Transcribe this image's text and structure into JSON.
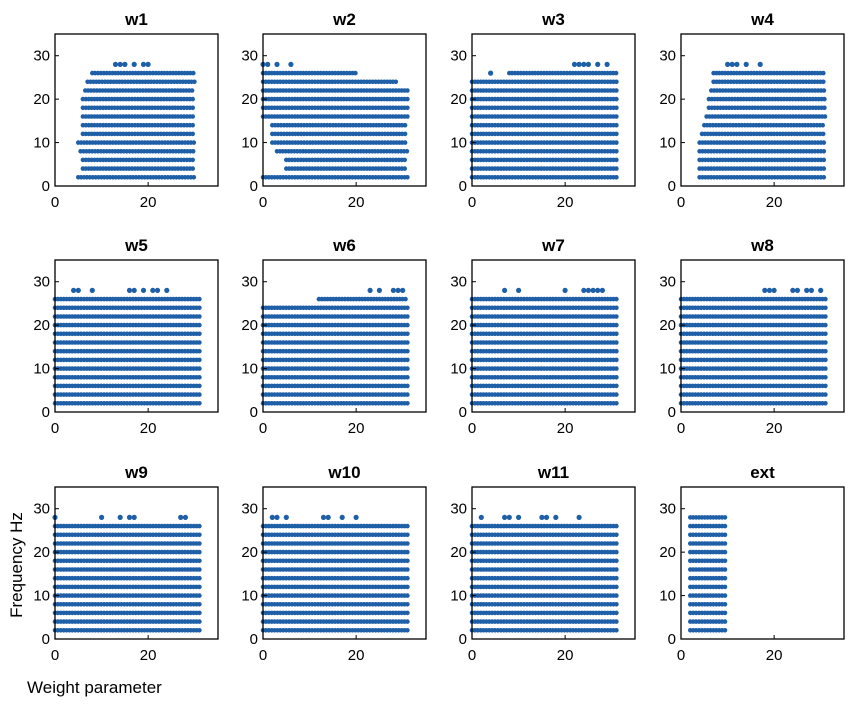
{
  "figure": {
    "ylabel": "Frequency Hz",
    "xlabel": "Weight parameter"
  },
  "chart_data": [
    {
      "type": "scatter",
      "title": "w1",
      "xlim": [
        0,
        35
      ],
      "ylim": [
        0,
        35
      ],
      "xticks": [
        "0",
        "20"
      ],
      "yticks": [
        "0",
        "10",
        "20",
        "30"
      ],
      "x_range": [
        5,
        30
      ],
      "freq_levels": [
        2,
        4,
        6,
        8,
        10,
        12,
        14,
        16,
        18,
        20,
        22,
        24,
        26
      ],
      "level_min_x": {
        "2": 5,
        "4": 6,
        "6": 6,
        "8": 5.5,
        "10": 5,
        "12": 6,
        "14": 6,
        "16": 6,
        "18": 6,
        "20": 6,
        "22": 6.5,
        "24": 7,
        "26": 8
      },
      "sparse_points": [
        {
          "x": 13,
          "y": 28
        },
        {
          "x": 14,
          "y": 28
        },
        {
          "x": 15,
          "y": 28
        },
        {
          "x": 17,
          "y": 28
        },
        {
          "x": 19,
          "y": 28
        },
        {
          "x": 20,
          "y": 28
        }
      ]
    },
    {
      "type": "scatter",
      "title": "w2",
      "xlim": [
        0,
        35
      ],
      "ylim": [
        0,
        35
      ],
      "xticks": [
        "0",
        "20"
      ],
      "yticks": [
        "0",
        "10",
        "20",
        "30"
      ],
      "x_range": [
        0,
        31
      ],
      "freq_levels": [
        2,
        4,
        6,
        8,
        10,
        12,
        14,
        16,
        18,
        20,
        22,
        24,
        26
      ],
      "level_min_x": {
        "2": 0,
        "4": 5,
        "6": 5,
        "8": 3,
        "10": 2,
        "12": 2,
        "14": 2,
        "16": 0,
        "18": 0,
        "20": 0,
        "22": 0,
        "24": 0,
        "26": 0
      },
      "level_max_x": {
        "22": 31,
        "24": 29,
        "26": 20
      },
      "sparse_points": [
        {
          "x": 0,
          "y": 28
        },
        {
          "x": 1,
          "y": 28
        },
        {
          "x": 3,
          "y": 28
        },
        {
          "x": 6,
          "y": 28
        }
      ]
    },
    {
      "type": "scatter",
      "title": "w3",
      "xlim": [
        0,
        35
      ],
      "ylim": [
        0,
        35
      ],
      "xticks": [
        "0",
        "20"
      ],
      "yticks": [
        "0",
        "10",
        "20",
        "30"
      ],
      "x_range": [
        0,
        31
      ],
      "freq_levels": [
        2,
        4,
        6,
        8,
        10,
        12,
        14,
        16,
        18,
        20,
        22,
        24,
        26
      ],
      "level_min_x": {
        "26": 8
      },
      "sparse_points": [
        {
          "x": 4,
          "y": 26
        },
        {
          "x": 22,
          "y": 28
        },
        {
          "x": 23,
          "y": 28
        },
        {
          "x": 24,
          "y": 28
        },
        {
          "x": 25,
          "y": 28
        },
        {
          "x": 27,
          "y": 28
        },
        {
          "x": 29,
          "y": 28
        }
      ]
    },
    {
      "type": "scatter",
      "title": "w4",
      "xlim": [
        0,
        35
      ],
      "ylim": [
        0,
        35
      ],
      "xticks": [
        "0",
        "20"
      ],
      "yticks": [
        "0",
        "10",
        "20",
        "30"
      ],
      "x_range": [
        4,
        31
      ],
      "freq_levels": [
        2,
        4,
        6,
        8,
        10,
        12,
        14,
        16,
        18,
        20,
        22,
        24,
        26
      ],
      "level_min_x": {
        "2": 4,
        "4": 4,
        "6": 4,
        "8": 4,
        "10": 4,
        "12": 4.5,
        "14": 5,
        "16": 5.5,
        "18": 6,
        "20": 6,
        "22": 6.5,
        "24": 7,
        "26": 7
      },
      "sparse_points": [
        {
          "x": 10,
          "y": 28
        },
        {
          "x": 11,
          "y": 28
        },
        {
          "x": 12,
          "y": 28
        },
        {
          "x": 14,
          "y": 28
        },
        {
          "x": 17,
          "y": 28
        }
      ]
    },
    {
      "type": "scatter",
      "title": "w5",
      "xlim": [
        0,
        35
      ],
      "ylim": [
        0,
        35
      ],
      "xticks": [
        "0",
        "20"
      ],
      "yticks": [
        "0",
        "10",
        "20",
        "30"
      ],
      "x_range": [
        0,
        31
      ],
      "freq_levels": [
        2,
        4,
        6,
        8,
        10,
        12,
        14,
        16,
        18,
        20,
        22,
        24,
        26
      ],
      "level_min_x": {},
      "sparse_points": [
        {
          "x": 4,
          "y": 28
        },
        {
          "x": 5,
          "y": 28
        },
        {
          "x": 8,
          "y": 28
        },
        {
          "x": 16,
          "y": 28
        },
        {
          "x": 17,
          "y": 28
        },
        {
          "x": 19,
          "y": 28
        },
        {
          "x": 21,
          "y": 28
        },
        {
          "x": 22,
          "y": 28
        },
        {
          "x": 24,
          "y": 28
        }
      ]
    },
    {
      "type": "scatter",
      "title": "w6",
      "xlim": [
        0,
        35
      ],
      "ylim": [
        0,
        35
      ],
      "xticks": [
        "0",
        "20"
      ],
      "yticks": [
        "0",
        "10",
        "20",
        "30"
      ],
      "x_range": [
        0,
        31
      ],
      "freq_levels": [
        2,
        4,
        6,
        8,
        10,
        12,
        14,
        16,
        18,
        20,
        22,
        24,
        26
      ],
      "level_min_x": {
        "26": 12
      },
      "sparse_points": [
        {
          "x": 23,
          "y": 28
        },
        {
          "x": 25,
          "y": 28
        },
        {
          "x": 28,
          "y": 28
        },
        {
          "x": 29,
          "y": 28
        },
        {
          "x": 30,
          "y": 28
        }
      ]
    },
    {
      "type": "scatter",
      "title": "w7",
      "xlim": [
        0,
        35
      ],
      "ylim": [
        0,
        35
      ],
      "xticks": [
        "0",
        "20"
      ],
      "yticks": [
        "0",
        "10",
        "20",
        "30"
      ],
      "x_range": [
        0,
        31
      ],
      "freq_levels": [
        2,
        4,
        6,
        8,
        10,
        12,
        14,
        16,
        18,
        20,
        22,
        24,
        26
      ],
      "level_min_x": {},
      "sparse_points": [
        {
          "x": 7,
          "y": 28
        },
        {
          "x": 10,
          "y": 28
        },
        {
          "x": 20,
          "y": 28
        },
        {
          "x": 24,
          "y": 28
        },
        {
          "x": 25,
          "y": 28
        },
        {
          "x": 26,
          "y": 28
        },
        {
          "x": 27,
          "y": 28
        },
        {
          "x": 28,
          "y": 28
        }
      ]
    },
    {
      "type": "scatter",
      "title": "w8",
      "xlim": [
        0,
        35
      ],
      "ylim": [
        0,
        35
      ],
      "xticks": [
        "0",
        "20"
      ],
      "yticks": [
        "0",
        "10",
        "20",
        "30"
      ],
      "x_range": [
        0,
        31
      ],
      "freq_levels": [
        2,
        4,
        6,
        8,
        10,
        12,
        14,
        16,
        18,
        20,
        22,
        24,
        26
      ],
      "level_min_x": {},
      "sparse_points": [
        {
          "x": 18,
          "y": 28
        },
        {
          "x": 19,
          "y": 28
        },
        {
          "x": 20,
          "y": 28
        },
        {
          "x": 24,
          "y": 28
        },
        {
          "x": 25,
          "y": 28
        },
        {
          "x": 27,
          "y": 28
        },
        {
          "x": 28,
          "y": 28
        },
        {
          "x": 30,
          "y": 28
        }
      ]
    },
    {
      "type": "scatter",
      "title": "w9",
      "xlim": [
        0,
        35
      ],
      "ylim": [
        0,
        35
      ],
      "xticks": [
        "0",
        "20"
      ],
      "yticks": [
        "0",
        "10",
        "20",
        "30"
      ],
      "x_range": [
        0,
        31
      ],
      "freq_levels": [
        2,
        4,
        6,
        8,
        10,
        12,
        14,
        16,
        18,
        20,
        22,
        24,
        26
      ],
      "level_min_x": {},
      "sparse_points": [
        {
          "x": 0,
          "y": 28
        },
        {
          "x": 10,
          "y": 28
        },
        {
          "x": 14,
          "y": 28
        },
        {
          "x": 16,
          "y": 28
        },
        {
          "x": 17,
          "y": 28
        },
        {
          "x": 27,
          "y": 28
        },
        {
          "x": 28,
          "y": 28
        }
      ]
    },
    {
      "type": "scatter",
      "title": "w10",
      "xlim": [
        0,
        35
      ],
      "ylim": [
        0,
        35
      ],
      "xticks": [
        "0",
        "20"
      ],
      "yticks": [
        "0",
        "10",
        "20",
        "30"
      ],
      "x_range": [
        0,
        31
      ],
      "freq_levels": [
        2,
        4,
        6,
        8,
        10,
        12,
        14,
        16,
        18,
        20,
        22,
        24,
        26
      ],
      "level_min_x": {},
      "sparse_points": [
        {
          "x": 2,
          "y": 28
        },
        {
          "x": 3,
          "y": 28
        },
        {
          "x": 5,
          "y": 28
        },
        {
          "x": 13,
          "y": 28
        },
        {
          "x": 14,
          "y": 28
        },
        {
          "x": 17,
          "y": 28
        },
        {
          "x": 20,
          "y": 28
        }
      ]
    },
    {
      "type": "scatter",
      "title": "w11",
      "xlim": [
        0,
        35
      ],
      "ylim": [
        0,
        35
      ],
      "xticks": [
        "0",
        "20"
      ],
      "yticks": [
        "0",
        "10",
        "20",
        "30"
      ],
      "x_range": [
        0,
        31
      ],
      "freq_levels": [
        2,
        4,
        6,
        8,
        10,
        12,
        14,
        16,
        18,
        20,
        22,
        24,
        26
      ],
      "level_min_x": {},
      "sparse_points": [
        {
          "x": 2,
          "y": 28
        },
        {
          "x": 7,
          "y": 28
        },
        {
          "x": 8,
          "y": 28
        },
        {
          "x": 10,
          "y": 28
        },
        {
          "x": 15,
          "y": 28
        },
        {
          "x": 16,
          "y": 28
        },
        {
          "x": 18,
          "y": 28
        },
        {
          "x": 23,
          "y": 28
        }
      ]
    },
    {
      "type": "scatter",
      "title": "ext",
      "xlim": [
        0,
        35
      ],
      "ylim": [
        0,
        35
      ],
      "xticks": [
        "0",
        "20"
      ],
      "yticks": [
        "0",
        "10",
        "20",
        "30"
      ],
      "x_range": [
        2,
        10
      ],
      "freq_levels": [
        2,
        4,
        6,
        8,
        10,
        12,
        14,
        16,
        18,
        20,
        22,
        24,
        26,
        28
      ],
      "level_min_x": {},
      "sparse_points": []
    }
  ],
  "colors": {
    "marker": "#1f5fa8",
    "axis": "#000000",
    "background": "#ffffff"
  }
}
